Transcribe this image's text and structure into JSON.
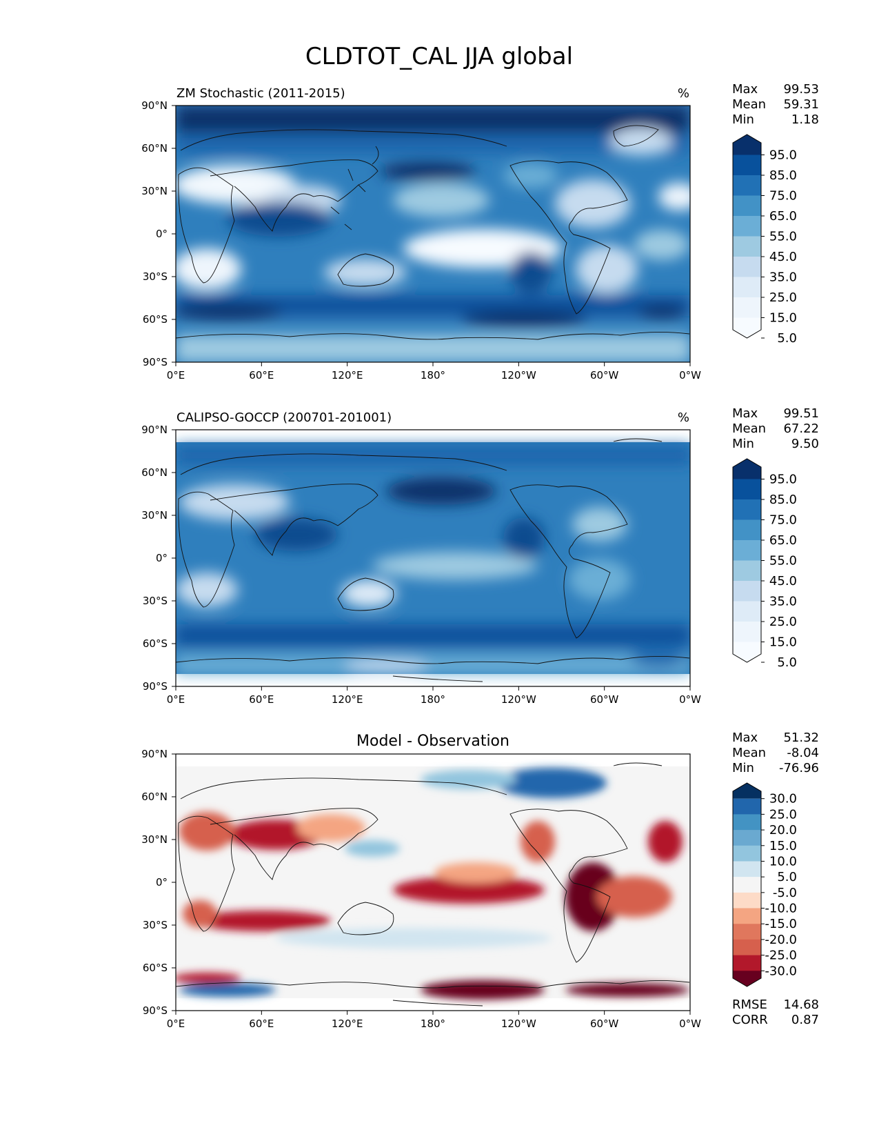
{
  "figure": {
    "title": "CLDTOT_CAL JJA global"
  },
  "lon_ticks": [
    "0°E",
    "60°E",
    "120°E",
    "180°",
    "120°W",
    "60°W",
    "0°W"
  ],
  "lat_ticks": [
    "90°N",
    "60°N",
    "30°N",
    "0°",
    "30°S",
    "60°S",
    "90°S"
  ],
  "panels": [
    {
      "id": "model",
      "title_left": "ZM Stochastic (2011-2015)",
      "title_center": "",
      "units": "%",
      "stats": [
        {
          "label": "Max",
          "value": "99.53"
        },
        {
          "label": "Mean",
          "value": "59.31"
        },
        {
          "label": "Min",
          "value": "1.18"
        }
      ],
      "colorbar": {
        "labels": [
          "95.0",
          "85.0",
          "75.0",
          "65.0",
          "55.0",
          "45.0",
          "35.0",
          "25.0",
          "15.0",
          "5.0"
        ],
        "colors": [
          "#08306b",
          "#08519c",
          "#2171b5",
          "#4292c6",
          "#6baed6",
          "#9ecae1",
          "#c6dbef",
          "#deebf7",
          "#eef5fc",
          "#f7fbff"
        ]
      },
      "extra_stats": []
    },
    {
      "id": "obs",
      "title_left": "CALIPSO-GOCCP (200701-201001)",
      "title_center": "",
      "units": "%",
      "stats": [
        {
          "label": "Max",
          "value": "99.51"
        },
        {
          "label": "Mean",
          "value": "67.22"
        },
        {
          "label": "Min",
          "value": "9.50"
        }
      ],
      "colorbar": {
        "labels": [
          "95.0",
          "85.0",
          "75.0",
          "65.0",
          "55.0",
          "45.0",
          "35.0",
          "25.0",
          "15.0",
          "5.0"
        ],
        "colors": [
          "#08306b",
          "#08519c",
          "#2171b5",
          "#4292c6",
          "#6baed6",
          "#9ecae1",
          "#c6dbef",
          "#deebf7",
          "#eef5fc",
          "#f7fbff"
        ]
      },
      "extra_stats": []
    },
    {
      "id": "diff",
      "title_left": "",
      "title_center": "Model - Observation",
      "units": "",
      "stats": [
        {
          "label": "Max",
          "value": "51.32"
        },
        {
          "label": "Mean",
          "value": "-8.04"
        },
        {
          "label": "Min",
          "value": "-76.96"
        }
      ],
      "colorbar": {
        "labels": [
          "30.0",
          "25.0",
          "20.0",
          "15.0",
          "10.0",
          "5.0",
          "-5.0",
          "-10.0",
          "-15.0",
          "-20.0",
          "-25.0",
          "-30.0"
        ],
        "colors": [
          "#053061",
          "#2166ac",
          "#4393c3",
          "#6aa9d0",
          "#92c5de",
          "#d1e5f0",
          "#f5f5f5",
          "#fddbc7",
          "#f4a582",
          "#e0775d",
          "#d6604d",
          "#b2182b",
          "#67001f"
        ]
      },
      "extra_stats": [
        {
          "label": "RMSE",
          "value": "14.68"
        },
        {
          "label": "CORR",
          "value": "0.87"
        }
      ]
    }
  ]
}
